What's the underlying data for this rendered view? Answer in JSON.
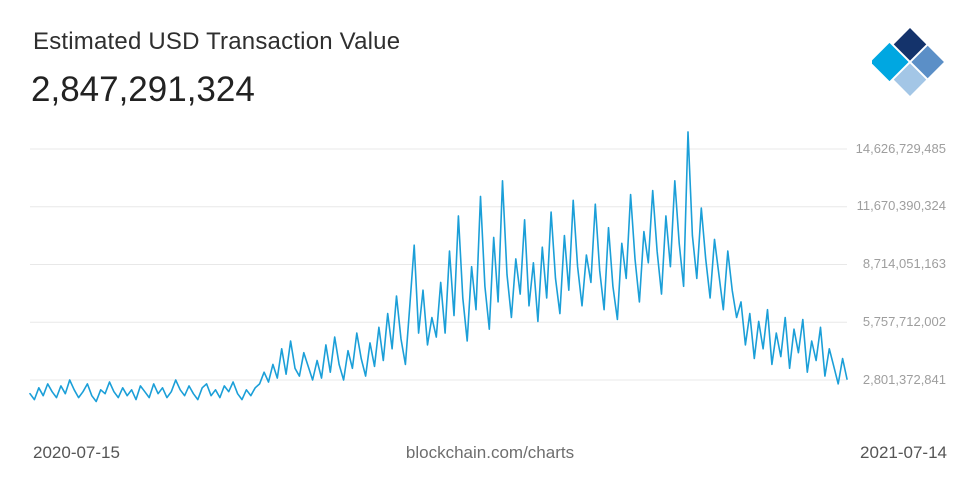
{
  "header": {
    "title": "Estimated USD Transaction Value",
    "current_value": "2,847,291,324"
  },
  "logo": {
    "name": "blockchain-com-logo",
    "colors": {
      "navy": "#14336b",
      "steel_blue": "#5b8fc7",
      "light_blue": "#a3c6e6",
      "bright_blue": "#00a7e1"
    }
  },
  "footer": {
    "x_start_label": "2020-07-15",
    "x_end_label": "2021-07-14",
    "source_label": "blockchain.com/charts"
  },
  "chart_data": {
    "type": "line",
    "title": "Estimated USD Transaction Value",
    "xlabel": "",
    "ylabel": "Estimated USD Transaction Value",
    "units": "USD (values stored in billions)",
    "x_range": [
      "2020-07-15",
      "2021-07-14"
    ],
    "legend": "none",
    "grid": "horizontal",
    "line_color": "#1b9fd8",
    "gridline_color": "#e8e8e8",
    "y_tick_labels": [
      "2,801,372,841",
      "5,757,712,002",
      "8,714,051,163",
      "11,670,390,324",
      "14,626,729,485"
    ],
    "y_ticks_billions": [
      2.801372841,
      5.757712002,
      8.714051163,
      11.670390324,
      14.626729485
    ],
    "values": [
      2.1,
      1.8,
      2.4,
      2.0,
      2.6,
      2.2,
      1.9,
      2.5,
      2.1,
      2.8,
      2.3,
      1.9,
      2.2,
      2.6,
      2.0,
      1.7,
      2.3,
      2.1,
      2.7,
      2.2,
      1.9,
      2.4,
      2.0,
      2.3,
      1.8,
      2.5,
      2.2,
      1.9,
      2.6,
      2.1,
      2.4,
      1.9,
      2.2,
      2.8,
      2.3,
      2.0,
      2.5,
      2.1,
      1.8,
      2.4,
      2.6,
      2.0,
      2.3,
      1.9,
      2.5,
      2.2,
      2.7,
      2.1,
      1.8,
      2.3,
      2.0,
      2.4,
      2.6,
      3.2,
      2.7,
      3.6,
      2.9,
      4.4,
      3.1,
      4.8,
      3.4,
      3.0,
      4.2,
      3.5,
      2.8,
      3.8,
      2.9,
      4.6,
      3.2,
      5.0,
      3.6,
      2.8,
      4.3,
      3.4,
      5.2,
      3.9,
      3.0,
      4.7,
      3.5,
      5.5,
      3.8,
      6.2,
      4.4,
      7.1,
      4.9,
      3.6,
      6.6,
      9.7,
      5.2,
      7.4,
      4.6,
      6.0,
      5.0,
      7.8,
      5.2,
      9.4,
      6.1,
      11.2,
      7.0,
      4.8,
      8.6,
      6.4,
      12.2,
      7.6,
      5.4,
      10.1,
      6.8,
      13.0,
      8.2,
      6.0,
      9.0,
      7.2,
      11.0,
      6.6,
      8.8,
      5.8,
      9.6,
      7.0,
      11.4,
      8.0,
      6.2,
      10.2,
      7.4,
      12.0,
      8.6,
      6.6,
      9.2,
      7.8,
      11.8,
      8.4,
      6.4,
      10.6,
      7.6,
      5.9,
      9.8,
      8.0,
      12.3,
      9.0,
      6.8,
      10.4,
      8.8,
      12.5,
      9.4,
      7.2,
      11.2,
      8.6,
      13.0,
      9.8,
      7.6,
      15.5,
      10.2,
      8.0,
      11.6,
      9.0,
      7.0,
      10.0,
      8.2,
      6.4,
      9.4,
      7.4,
      6.0,
      6.8,
      4.6,
      6.2,
      3.9,
      5.8,
      4.4,
      6.4,
      3.6,
      5.2,
      4.0,
      6.0,
      3.4,
      5.4,
      4.2,
      5.9,
      3.2,
      4.8,
      3.8,
      5.5,
      3.0,
      4.4,
      3.5,
      2.6,
      3.9,
      2.85
    ]
  }
}
